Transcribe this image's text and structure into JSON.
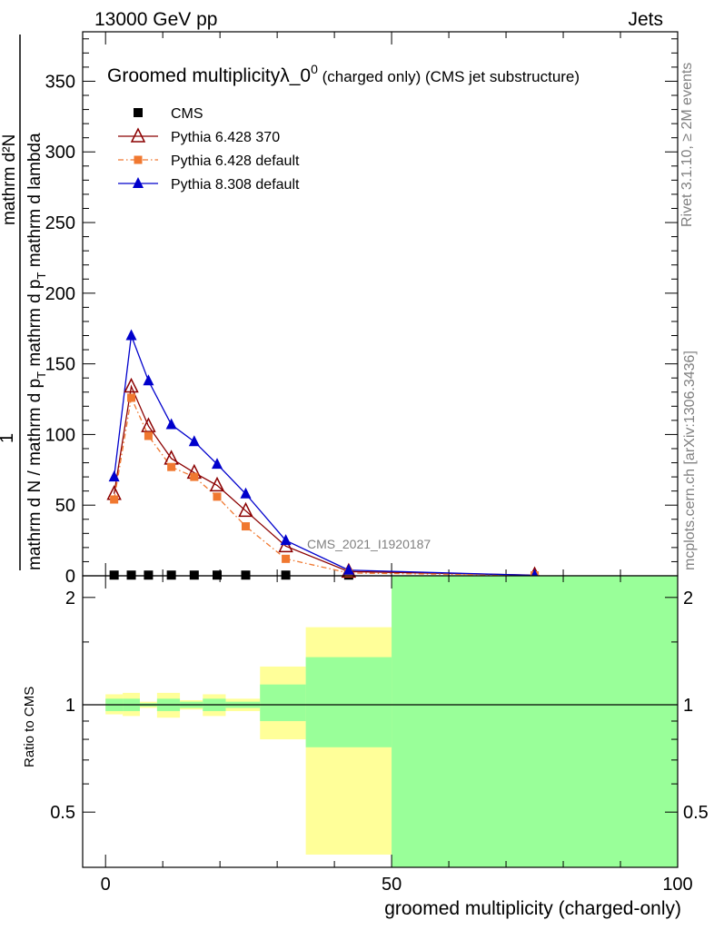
{
  "header": {
    "left": "13000 GeV pp",
    "right": "Jets"
  },
  "side_text": {
    "rivet": "Rivet 3.1.10, ≥ 2M events",
    "mcplots": "mcplots.cern.ch [arXiv:1306.3436]"
  },
  "watermark": "CMS_2021_I1920187",
  "chart_data": [
    {
      "type": "line",
      "title": "Groomed multiplicity",
      "title_symbol": "λ_0",
      "title_sup": "0",
      "title_suffix": " (charged only) (CMS jet substructure)",
      "ylabel_num": "mathrm d²N",
      "ylabel_main": "mathrm d N / mathrm d p",
      "ylabel_sub": "T",
      "ylabel_main2": " mathrm d p",
      "ylabel_sub2": "T",
      "ylabel_tail": " mathrm d lambda",
      "ylabel_one": "1",
      "xlim": [
        -4,
        100
      ],
      "ylim": [
        0,
        385
      ],
      "yticks": [
        0,
        50,
        100,
        150,
        200,
        250,
        300,
        350
      ],
      "legend_position": "top-left",
      "series": [
        {
          "name": "CMS",
          "color": "#000000",
          "marker": "square",
          "x": [
            1.5,
            4.5,
            7.5,
            11.5,
            15.5,
            19.5,
            24.5,
            31.5,
            42.5
          ],
          "y": [
            0.5,
            0.5,
            0.5,
            0.5,
            0.5,
            0.5,
            0.5,
            0.5,
            0.5
          ]
        },
        {
          "name": "Pythia 6.428 370",
          "color": "#8b0000",
          "marker": "open-triangle",
          "x": [
            1.5,
            4.5,
            7.5,
            11.5,
            15.5,
            19.5,
            24.5,
            31.5,
            42.5,
            75
          ],
          "y": [
            58,
            134,
            106,
            83,
            73,
            64,
            46,
            21,
            3,
            0.5
          ]
        },
        {
          "name": "Pythia 6.428 default",
          "color": "#f07830",
          "marker": "small-square",
          "x": [
            1.5,
            4.5,
            7.5,
            11.5,
            15.5,
            19.5,
            24.5,
            31.5,
            42.5,
            75
          ],
          "y": [
            54,
            126,
            99,
            77,
            70,
            56,
            35,
            12,
            2,
            0.3
          ]
        },
        {
          "name": "Pythia 8.308 default",
          "color": "#0000cc",
          "marker": "triangle",
          "x": [
            1.5,
            4.5,
            7.5,
            11.5,
            15.5,
            19.5,
            24.5,
            31.5,
            42.5,
            75
          ],
          "y": [
            70,
            170,
            138,
            107,
            95,
            79,
            58,
            25,
            4,
            0.3
          ]
        }
      ]
    },
    {
      "type": "area",
      "ylabel": "Ratio to CMS",
      "xlabel": "groomed multiplicity (charged-only)",
      "xlim": [
        -4,
        100
      ],
      "ylim": [
        0.35,
        2.3
      ],
      "yticks": [
        0.5,
        1,
        2
      ],
      "ytick_labels": [
        "0.5",
        "1",
        "2"
      ],
      "xticks": [
        0,
        50,
        100
      ],
      "xtick_labels": [
        "0",
        "50",
        "100"
      ],
      "bins": [
        {
          "lo": 0,
          "hi": 3,
          "yellow": [
            0.94,
            1.07
          ],
          "green": [
            0.96,
            1.04
          ]
        },
        {
          "lo": 3,
          "hi": 6,
          "yellow": [
            0.93,
            1.08
          ],
          "green": [
            0.96,
            1.04
          ]
        },
        {
          "lo": 6,
          "hi": 9,
          "yellow": [
            0.98,
            1.02
          ],
          "green": [
            0.99,
            1.01
          ]
        },
        {
          "lo": 9,
          "hi": 13,
          "yellow": [
            0.92,
            1.08
          ],
          "green": [
            0.96,
            1.04
          ]
        },
        {
          "lo": 13,
          "hi": 17,
          "yellow": [
            0.97,
            1.03
          ],
          "green": [
            0.98,
            1.02
          ]
        },
        {
          "lo": 17,
          "hi": 21,
          "yellow": [
            0.93,
            1.07
          ],
          "green": [
            0.96,
            1.04
          ]
        },
        {
          "lo": 21,
          "hi": 27,
          "yellow": [
            0.96,
            1.04
          ],
          "green": [
            0.98,
            1.02
          ]
        },
        {
          "lo": 27,
          "hi": 35,
          "yellow": [
            0.8,
            1.28
          ],
          "green": [
            0.9,
            1.14
          ]
        },
        {
          "lo": 35,
          "hi": 50,
          "yellow": [
            0.38,
            1.65
          ],
          "green": [
            0.76,
            1.36
          ]
        },
        {
          "lo": 50,
          "hi": 100,
          "yellow": [
            0.35,
            2.3
          ],
          "green": [
            0.35,
            2.3
          ]
        }
      ],
      "band_colors": {
        "yellow": "#ffff99",
        "green": "#99ff99"
      },
      "reference_line": 1
    }
  ]
}
